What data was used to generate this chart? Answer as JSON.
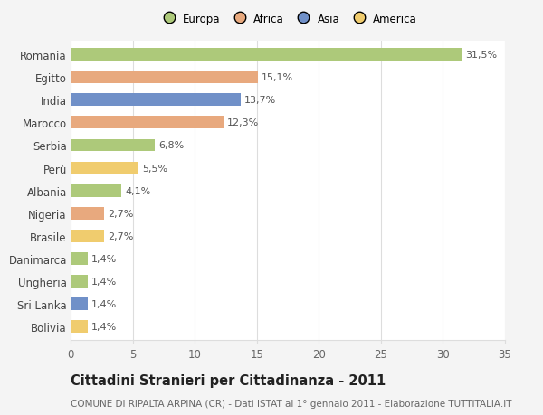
{
  "countries": [
    "Romania",
    "Egitto",
    "India",
    "Marocco",
    "Serbia",
    "Perù",
    "Albania",
    "Nigeria",
    "Brasile",
    "Danimarca",
    "Ungheria",
    "Sri Lanka",
    "Bolivia"
  ],
  "values": [
    31.5,
    15.1,
    13.7,
    12.3,
    6.8,
    5.5,
    4.1,
    2.7,
    2.7,
    1.4,
    1.4,
    1.4,
    1.4
  ],
  "labels": [
    "31,5%",
    "15,1%",
    "13,7%",
    "12,3%",
    "6,8%",
    "5,5%",
    "4,1%",
    "2,7%",
    "2,7%",
    "1,4%",
    "1,4%",
    "1,4%",
    "1,4%"
  ],
  "continents": [
    "Europa",
    "Africa",
    "Asia",
    "Africa",
    "Europa",
    "America",
    "Europa",
    "Africa",
    "America",
    "Europa",
    "Europa",
    "Asia",
    "America"
  ],
  "colors": {
    "Europa": "#adc97a",
    "Africa": "#e8a97e",
    "Asia": "#7090c8",
    "America": "#f0cc6e"
  },
  "xlim": [
    0,
    35
  ],
  "xticks": [
    0,
    5,
    10,
    15,
    20,
    25,
    30,
    35
  ],
  "title": "Cittadini Stranieri per Cittadinanza - 2011",
  "subtitle": "COMUNE DI RIPALTA ARPINA (CR) - Dati ISTAT al 1° gennaio 2011 - Elaborazione TUTTITALIA.IT",
  "background_color": "#f4f4f4",
  "bar_background": "#ffffff",
  "grid_color": "#dddddd",
  "bar_height": 0.55,
  "label_fontsize": 8,
  "ytick_fontsize": 8.5,
  "xtick_fontsize": 8.5,
  "title_fontsize": 10.5,
  "subtitle_fontsize": 7.5
}
